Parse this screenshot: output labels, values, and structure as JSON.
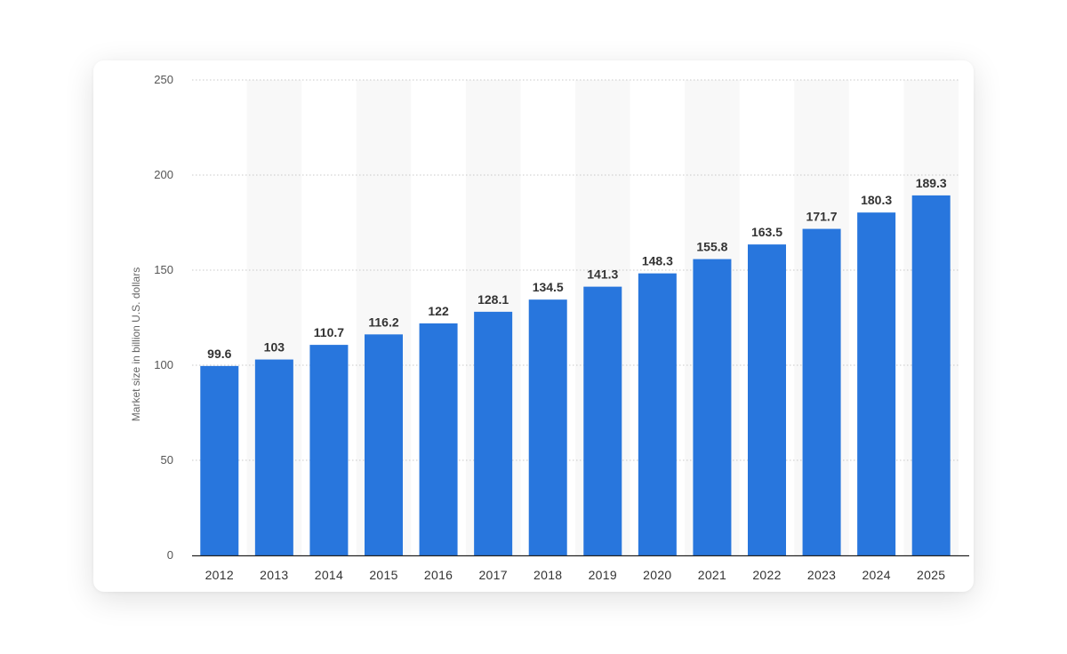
{
  "chart_data": {
    "type": "bar",
    "title": "",
    "xlabel": "",
    "ylabel": "Market size in billion U.S. dollars",
    "ylim": [
      0,
      250
    ],
    "yticks": [
      0,
      50,
      100,
      150,
      200,
      250
    ],
    "grid": true,
    "categories": [
      "2012",
      "2013",
      "2014",
      "2015",
      "2016",
      "2017",
      "2018",
      "2019",
      "2020",
      "2021",
      "2022",
      "2023",
      "2024",
      "2025"
    ],
    "values": [
      99.6,
      103,
      110.7,
      116.2,
      122,
      128.1,
      134.5,
      141.3,
      148.3,
      155.8,
      163.5,
      171.7,
      180.3,
      189.3
    ],
    "data_labels": [
      "99.6",
      "103",
      "110.7",
      "116.2",
      "122",
      "128.1",
      "134.5",
      "141.3",
      "148.3",
      "155.8",
      "163.5",
      "171.7",
      "180.3",
      "189.3"
    ],
    "colors": {
      "bar": "#2876dd",
      "band": "#f8f8f8",
      "grid": "#c8c8c8",
      "axis": "#222222"
    }
  }
}
